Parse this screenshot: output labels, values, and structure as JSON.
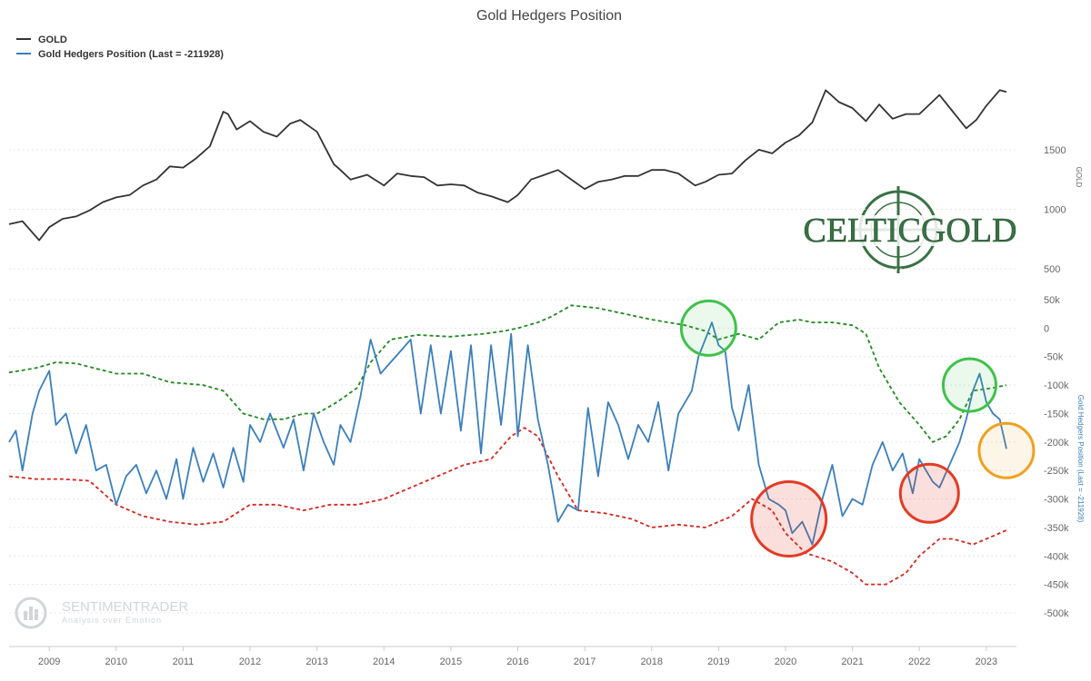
{
  "chart_data": {
    "type": "line",
    "title": "Gold Hedgers Position",
    "legend": {
      "placement": "top-left",
      "entries": [
        "GOLD",
        "Gold Hedgers Position (Last = -211928)"
      ]
    },
    "x_ticks": [
      "2009",
      "2010",
      "2011",
      "2012",
      "2013",
      "2014",
      "2015",
      "2016",
      "2017",
      "2018",
      "2019",
      "2020",
      "2021",
      "2022",
      "2023"
    ],
    "x_range": [
      2008.4,
      2023.45
    ],
    "gold_axis": {
      "label": "GOLD",
      "ticks": [
        "1500",
        "1000",
        "500"
      ],
      "tick_values": [
        1500,
        1000,
        500
      ],
      "range": [
        470,
        1995
      ]
    },
    "hedgers_axis": {
      "label": "Gold Hedgers Position (Last = -211928)",
      "ticks": [
        "50k",
        "0",
        "-50k",
        "-100k",
        "-150k",
        "-200k",
        "-250k",
        "-300k",
        "-350k",
        "-400k",
        "-450k",
        "-500k"
      ],
      "tick_values": [
        50000,
        0,
        -50000,
        -100000,
        -150000,
        -200000,
        -250000,
        -300000,
        -350000,
        -400000,
        -450000,
        -500000
      ],
      "range": [
        -500000,
        50000
      ]
    },
    "colors": {
      "gold": "#333333",
      "hedgers": "#3a7fbd",
      "upper_band": "#1f8a1f",
      "lower_band": "#d7261e"
    },
    "series": [
      {
        "name": "GOLD",
        "axis": "gold",
        "x": [
          2008.4,
          2008.6,
          2008.85,
          2009.0,
          2009.2,
          2009.4,
          2009.6,
          2009.8,
          2010.0,
          2010.2,
          2010.4,
          2010.6,
          2010.8,
          2011.0,
          2011.2,
          2011.4,
          2011.6,
          2011.67,
          2011.8,
          2012.0,
          2012.2,
          2012.4,
          2012.6,
          2012.75,
          2013.0,
          2013.25,
          2013.35,
          2013.5,
          2013.75,
          2014.0,
          2014.2,
          2014.4,
          2014.6,
          2014.8,
          2015.0,
          2015.2,
          2015.4,
          2015.6,
          2015.85,
          2016.0,
          2016.2,
          2016.4,
          2016.6,
          2016.75,
          2017.0,
          2017.2,
          2017.4,
          2017.6,
          2017.8,
          2018.0,
          2018.2,
          2018.4,
          2018.65,
          2018.8,
          2019.0,
          2019.2,
          2019.4,
          2019.6,
          2019.8,
          2020.0,
          2020.2,
          2020.4,
          2020.6,
          2020.8,
          2021.0,
          2021.2,
          2021.4,
          2021.6,
          2021.8,
          2022.0,
          2022.15,
          2022.3,
          2022.5,
          2022.7,
          2022.85,
          2023.0,
          2023.2,
          2023.3
        ],
        "values": [
          875,
          900,
          740,
          850,
          920,
          940,
          990,
          1060,
          1100,
          1120,
          1200,
          1250,
          1360,
          1350,
          1430,
          1530,
          1820,
          1800,
          1670,
          1740,
          1650,
          1610,
          1720,
          1750,
          1650,
          1380,
          1330,
          1250,
          1290,
          1200,
          1300,
          1280,
          1270,
          1200,
          1210,
          1200,
          1140,
          1110,
          1060,
          1120,
          1250,
          1290,
          1330,
          1270,
          1170,
          1230,
          1250,
          1280,
          1280,
          1330,
          1330,
          1300,
          1200,
          1230,
          1290,
          1300,
          1410,
          1500,
          1470,
          1560,
          1620,
          1730,
          2000,
          1900,
          1850,
          1740,
          1880,
          1760,
          1800,
          1800,
          1880,
          1960,
          1820,
          1680,
          1750,
          1870,
          2000,
          1985
        ]
      },
      {
        "name": "Gold Hedgers Position (Last = -211928)",
        "axis": "hedgers",
        "x": [
          2008.4,
          2008.5,
          2008.6,
          2008.75,
          2008.85,
          2009.0,
          2009.1,
          2009.25,
          2009.4,
          2009.55,
          2009.7,
          2009.85,
          2010.0,
          2010.15,
          2010.3,
          2010.45,
          2010.6,
          2010.75,
          2010.9,
          2011.0,
          2011.15,
          2011.3,
          2011.45,
          2011.6,
          2011.75,
          2011.9,
          2012.0,
          2012.15,
          2012.3,
          2012.5,
          2012.65,
          2012.8,
          2012.95,
          2013.1,
          2013.25,
          2013.35,
          2013.5,
          2013.65,
          2013.8,
          2013.95,
          2014.1,
          2014.25,
          2014.4,
          2014.55,
          2014.7,
          2014.85,
          2015.0,
          2015.15,
          2015.3,
          2015.45,
          2015.6,
          2015.75,
          2015.9,
          2016.0,
          2016.15,
          2016.3,
          2016.45,
          2016.6,
          2016.75,
          2016.9,
          2017.05,
          2017.2,
          2017.35,
          2017.5,
          2017.65,
          2017.8,
          2017.95,
          2018.1,
          2018.25,
          2018.4,
          2018.5,
          2018.6,
          2018.7,
          2018.8,
          2018.9,
          2019.0,
          2019.1,
          2019.2,
          2019.3,
          2019.45,
          2019.6,
          2019.75,
          2019.9,
          2020.0,
          2020.1,
          2020.25,
          2020.4,
          2020.55,
          2020.7,
          2020.85,
          2021.0,
          2021.15,
          2021.3,
          2021.45,
          2021.6,
          2021.75,
          2021.9,
          2022.0,
          2022.1,
          2022.2,
          2022.3,
          2022.45,
          2022.6,
          2022.7,
          2022.8,
          2022.9,
          2023.0,
          2023.1,
          2023.2,
          2023.3
        ],
        "values": [
          -200000,
          -180000,
          -250000,
          -150000,
          -110000,
          -75000,
          -170000,
          -150000,
          -220000,
          -170000,
          -250000,
          -240000,
          -310000,
          -260000,
          -240000,
          -290000,
          -250000,
          -300000,
          -230000,
          -300000,
          -210000,
          -270000,
          -220000,
          -280000,
          -210000,
          -270000,
          -170000,
          -200000,
          -150000,
          -210000,
          -160000,
          -250000,
          -150000,
          -200000,
          -240000,
          -170000,
          -200000,
          -120000,
          -20000,
          -80000,
          -60000,
          -40000,
          -20000,
          -150000,
          -30000,
          -150000,
          -40000,
          -180000,
          -30000,
          -220000,
          -30000,
          -170000,
          -10000,
          -190000,
          -30000,
          -160000,
          -240000,
          -340000,
          -310000,
          -320000,
          -140000,
          -260000,
          -130000,
          -170000,
          -230000,
          -170000,
          -200000,
          -130000,
          -250000,
          -150000,
          -130000,
          -110000,
          -50000,
          -20000,
          10000,
          -30000,
          -40000,
          -140000,
          -180000,
          -100000,
          -240000,
          -300000,
          -310000,
          -320000,
          -360000,
          -340000,
          -380000,
          -300000,
          -240000,
          -330000,
          -300000,
          -310000,
          -240000,
          -200000,
          -250000,
          -220000,
          -290000,
          -230000,
          -250000,
          -270000,
          -280000,
          -240000,
          -200000,
          -160000,
          -110000,
          -80000,
          -130000,
          -150000,
          -160000,
          -212000
        ]
      },
      {
        "name": "upper band",
        "axis": "hedgers",
        "style": "dashed",
        "x": [
          2008.4,
          2008.8,
          2009.1,
          2009.4,
          2010.0,
          2010.4,
          2010.8,
          2011.3,
          2011.6,
          2011.9,
          2012.2,
          2012.5,
          2012.8,
          2013.0,
          2013.3,
          2013.6,
          2013.8,
          2014.1,
          2014.5,
          2015.0,
          2015.5,
          2015.8,
          2016.0,
          2016.3,
          2016.5,
          2016.8,
          2017.2,
          2017.6,
          2018.0,
          2018.5,
          2018.8,
          2019.0,
          2019.3,
          2019.6,
          2019.9,
          2020.2,
          2020.4,
          2020.7,
          2021.0,
          2021.2,
          2021.4,
          2021.7,
          2022.0,
          2022.2,
          2022.4,
          2022.6,
          2022.8,
          2023.1,
          2023.3
        ],
        "values": [
          -78000,
          -70000,
          -60000,
          -62000,
          -80000,
          -80000,
          -95000,
          -100000,
          -110000,
          -150000,
          -160000,
          -160000,
          -150000,
          -150000,
          -130000,
          -105000,
          -60000,
          -20000,
          -12000,
          -15000,
          -10000,
          -5000,
          0,
          10000,
          20000,
          40000,
          35000,
          25000,
          15000,
          5000,
          -5000,
          -20000,
          -10000,
          -20000,
          10000,
          15000,
          10000,
          10000,
          5000,
          -10000,
          -70000,
          -130000,
          -170000,
          -200000,
          -190000,
          -160000,
          -110000,
          -105000,
          -100000
        ]
      },
      {
        "name": "lower band",
        "axis": "hedgers",
        "style": "dashed",
        "x": [
          2008.4,
          2008.8,
          2009.2,
          2009.6,
          2010.0,
          2010.4,
          2010.8,
          2011.2,
          2011.6,
          2012.0,
          2012.4,
          2012.8,
          2013.2,
          2013.6,
          2014.0,
          2014.4,
          2014.8,
          2015.2,
          2015.6,
          2015.9,
          2016.1,
          2016.3,
          2016.6,
          2016.9,
          2017.3,
          2017.7,
          2018.0,
          2018.4,
          2018.8,
          2019.2,
          2019.5,
          2019.8,
          2020.0,
          2020.3,
          2020.7,
          2021.0,
          2021.2,
          2021.5,
          2021.8,
          2022.0,
          2022.3,
          2022.5,
          2022.8,
          2023.0,
          2023.3
        ],
        "values": [
          -260000,
          -265000,
          -265000,
          -268000,
          -310000,
          -330000,
          -340000,
          -345000,
          -340000,
          -310000,
          -310000,
          -320000,
          -310000,
          -310000,
          -300000,
          -280000,
          -260000,
          -240000,
          -230000,
          -190000,
          -175000,
          -190000,
          -260000,
          -320000,
          -325000,
          -335000,
          -350000,
          -345000,
          -350000,
          -330000,
          -300000,
          -320000,
          -360000,
          -395000,
          -410000,
          -430000,
          -450000,
          -450000,
          -430000,
          -400000,
          -370000,
          -370000,
          -380000,
          -370000,
          -355000
        ]
      }
    ],
    "annotations": [
      {
        "type": "circle",
        "color": "green",
        "x": 2018.85,
        "y": 0
      },
      {
        "type": "circle",
        "color": "green",
        "x": 2022.75,
        "y": -100000
      },
      {
        "type": "circle",
        "color": "red",
        "x": 2020.05,
        "y": -335000
      },
      {
        "type": "circle",
        "color": "red",
        "x": 2022.15,
        "y": -290000
      },
      {
        "type": "circle",
        "color": "orange",
        "x": 2023.3,
        "y": -215000
      }
    ],
    "watermarks": [
      "CELTICGOLD",
      "SENTIMENTRADER",
      "Analysis over Emotion"
    ]
  }
}
